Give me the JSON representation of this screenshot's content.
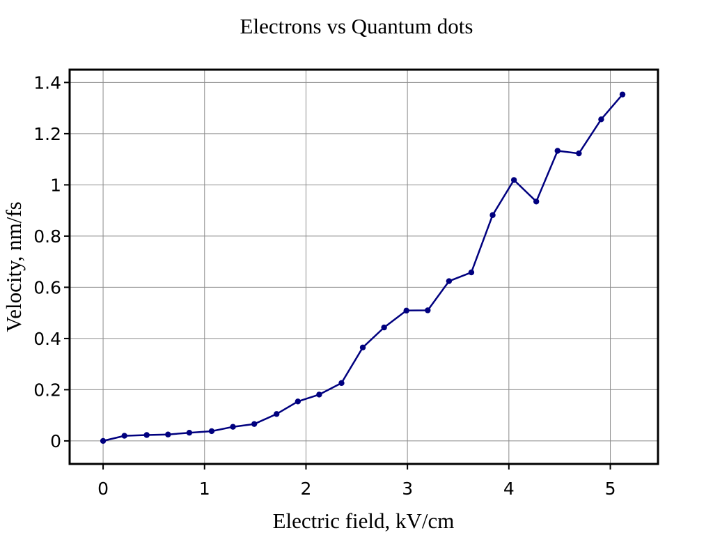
{
  "chart_data": {
    "type": "line",
    "title": "Electrons vs Quantum dots",
    "xlabel": "Electric field, kV/cm",
    "ylabel": "Velocity, nm/fs",
    "xlim": [
      -0.33,
      5.47
    ],
    "ylim": [
      -0.09,
      1.45
    ],
    "xticks": [
      0,
      1,
      2,
      3,
      4,
      5
    ],
    "yticks": [
      0,
      0.2,
      0.4,
      0.6,
      0.8,
      1,
      1.2,
      1.4
    ],
    "xtick_labels": [
      "0",
      "1",
      "2",
      "3",
      "4",
      "5"
    ],
    "ytick_labels": [
      "0",
      "0.2",
      "0.4",
      "0.6",
      "0.8",
      "1",
      "1.2",
      "1.4"
    ],
    "grid": true,
    "series": [
      {
        "color": "#00007f",
        "x": [
          0,
          0.21,
          0.43,
          0.64,
          0.85,
          1.07,
          1.28,
          1.49,
          1.71,
          1.92,
          2.13,
          2.35,
          2.56,
          2.77,
          2.99,
          3.2,
          3.41,
          3.63,
          3.84,
          4.05,
          4.27,
          4.48,
          4.69,
          4.91,
          5.12
        ],
        "y": [
          0.0,
          0.02,
          0.023,
          0.025,
          0.032,
          0.038,
          0.055,
          0.066,
          0.105,
          0.154,
          0.181,
          0.226,
          0.365,
          0.443,
          0.509,
          0.51,
          0.624,
          0.658,
          0.882,
          1.019,
          0.935,
          1.133,
          1.123,
          1.256,
          1.353
        ]
      }
    ]
  }
}
